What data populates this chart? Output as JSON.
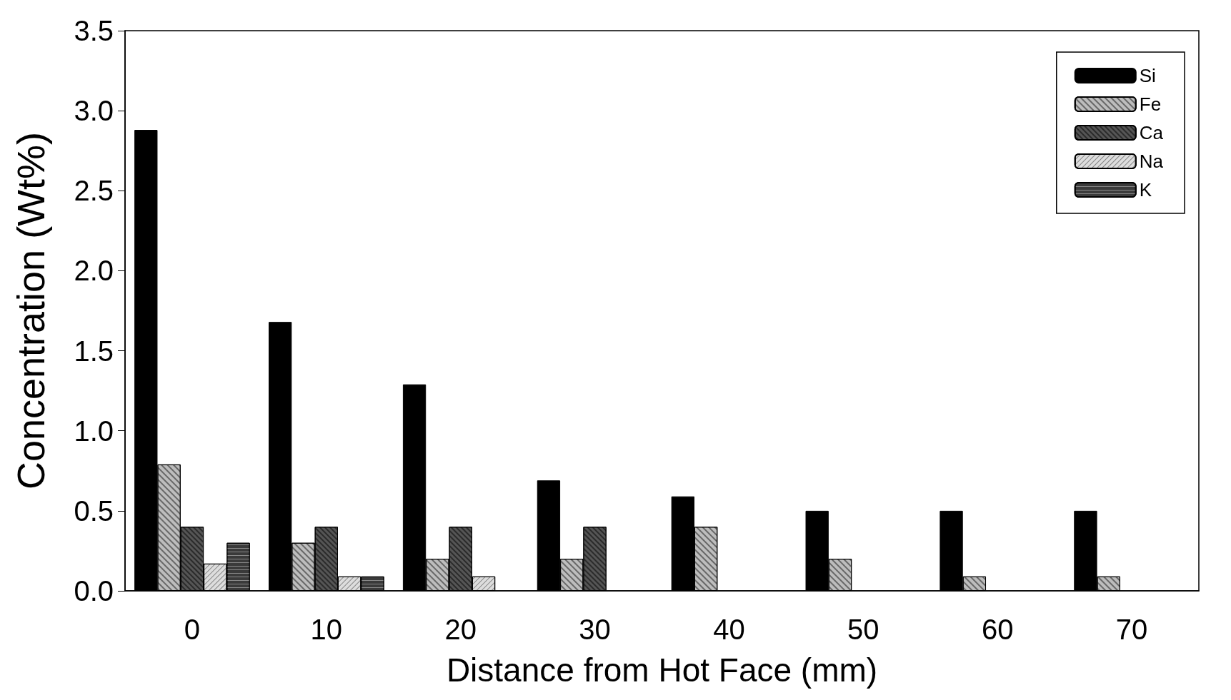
{
  "chart_data": {
    "type": "bar",
    "xlabel": "Distance from Hot Face (mm)",
    "ylabel": "Concentration (Wt%)",
    "categories": [
      "0",
      "10",
      "20",
      "30",
      "40",
      "50",
      "60",
      "70"
    ],
    "series": [
      {
        "name": "Si",
        "color": "#000000",
        "values": [
          2.88,
          1.68,
          1.29,
          0.69,
          0.59,
          0.5,
          0.5,
          0.5
        ]
      },
      {
        "name": "Fe",
        "color": "#bdbdbd",
        "values": [
          0.79,
          0.3,
          0.2,
          0.2,
          0.4,
          0.2,
          0.09,
          0.09
        ]
      },
      {
        "name": "Ca",
        "color": "#555555",
        "values": [
          0.4,
          0.4,
          0.4,
          0.4,
          null,
          null,
          null,
          null
        ]
      },
      {
        "name": "Na",
        "color": "#dddddd",
        "values": [
          0.17,
          0.09,
          0.09,
          null,
          null,
          null,
          null,
          null
        ]
      },
      {
        "name": "K",
        "color": "#3a3a3a",
        "values": [
          0.3,
          0.09,
          null,
          null,
          null,
          null,
          null,
          null
        ]
      }
    ],
    "ylim": [
      0,
      3.5
    ],
    "yticks": [
      {
        "value": 0,
        "label": "0.0"
      },
      {
        "value": 0.5,
        "label": "0.5"
      },
      {
        "value": 1,
        "label": "1.0"
      },
      {
        "value": 1.5,
        "label": "1.5"
      },
      {
        "value": 2,
        "label": "2.0"
      },
      {
        "value": 2.5,
        "label": "2.5"
      },
      {
        "value": 3,
        "label": "3.0"
      },
      {
        "value": 3.5,
        "label": "3.5"
      }
    ],
    "grid": false,
    "legend": "top right"
  }
}
